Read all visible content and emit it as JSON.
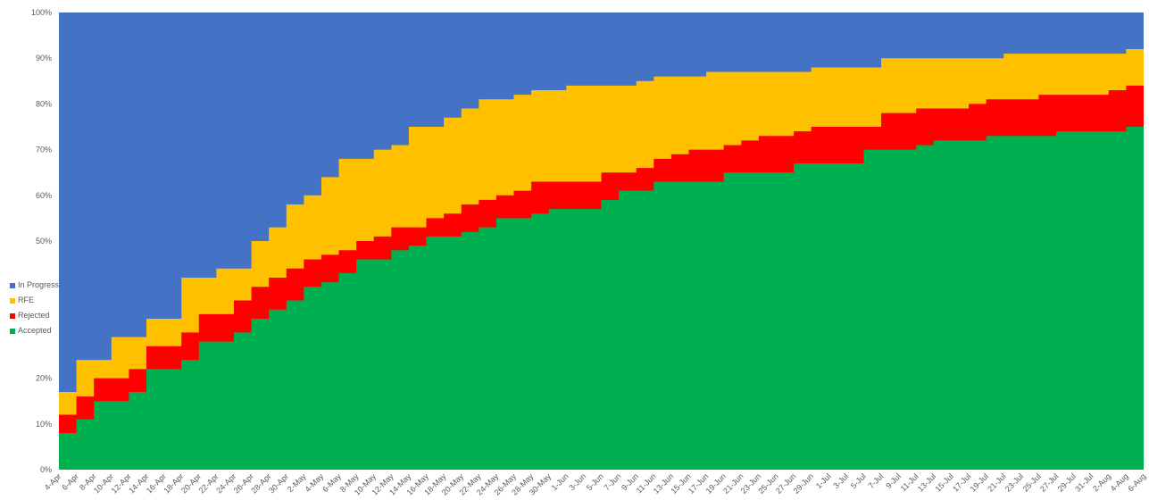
{
  "chart_data": {
    "type": "area",
    "stacked": true,
    "percent": true,
    "x_labels": [
      "4-Apr",
      "6-Apr",
      "8-Apr",
      "10-Apr",
      "12-Apr",
      "14-Apr",
      "16-Apr",
      "18-Apr",
      "20-Apr",
      "22-Apr",
      "24-Apr",
      "26-Apr",
      "28-Apr",
      "30-Apr",
      "2-May",
      "4-May",
      "6-May",
      "8-May",
      "10-May",
      "12-May",
      "14-May",
      "16-May",
      "18-May",
      "20-May",
      "22-May",
      "24-May",
      "26-May",
      "28-May",
      "30-May",
      "1-Jun",
      "3-Jun",
      "5-Jun",
      "7-Jun",
      "9-Jun",
      "11-Jun",
      "13-Jun",
      "15-Jun",
      "17-Jun",
      "19-Jun",
      "21-Jun",
      "23-Jun",
      "25-Jun",
      "27-Jun",
      "29-Jun",
      "1-Jul",
      "3-Jul",
      "5-Jul",
      "7-Jul",
      "9-Jul",
      "11-Jul",
      "13-Jul",
      "15-Jul",
      "17-Jul",
      "19-Jul",
      "21-Jul",
      "23-Jul",
      "25-Jul",
      "27-Jul",
      "29-Jul",
      "31-Jul",
      "2-Aug",
      "4-Aug",
      "6-Aug"
    ],
    "y_ticks": [
      "0%",
      "10%",
      "20%",
      "",
      "",
      "50%",
      "60%",
      "70%",
      "80%",
      "90%",
      "100%"
    ],
    "ylim": [
      0,
      100
    ],
    "legend_position": "left",
    "series": [
      {
        "name": "Accepted",
        "color": "#00B050",
        "values": [
          8,
          11,
          15,
          15,
          17,
          22,
          22,
          24,
          28,
          28,
          30,
          33,
          35,
          37,
          40,
          41,
          43,
          46,
          46,
          48,
          49,
          51,
          51,
          52,
          53,
          55,
          55,
          56,
          57,
          57,
          57,
          59,
          61,
          61,
          63,
          63,
          63,
          63,
          65,
          65,
          65,
          65,
          67,
          67,
          67,
          67,
          70,
          70,
          70,
          71,
          72,
          72,
          72,
          73,
          73,
          73,
          73,
          74,
          74,
          74,
          74,
          75,
          75
        ]
      },
      {
        "name": "Rejected",
        "color": "#FF0000",
        "values": [
          12,
          16,
          20,
          20,
          22,
          27,
          27,
          30,
          34,
          34,
          37,
          40,
          42,
          44,
          46,
          47,
          48,
          50,
          51,
          53,
          53,
          55,
          56,
          58,
          59,
          60,
          61,
          63,
          63,
          63,
          63,
          65,
          65,
          66,
          68,
          69,
          70,
          70,
          71,
          72,
          73,
          73,
          74,
          75,
          75,
          75,
          75,
          78,
          78,
          79,
          79,
          79,
          80,
          81,
          81,
          81,
          82,
          82,
          82,
          82,
          83,
          84,
          84
        ]
      },
      {
        "name": "RFE",
        "color": "#FFC000",
        "values": [
          17,
          24,
          24,
          29,
          29,
          33,
          33,
          42,
          42,
          44,
          44,
          50,
          53,
          58,
          60,
          64,
          68,
          68,
          70,
          71,
          75,
          75,
          77,
          79,
          81,
          81,
          82,
          83,
          83,
          84,
          84,
          84,
          84,
          85,
          86,
          86,
          86,
          87,
          87,
          87,
          87,
          87,
          87,
          88,
          88,
          88,
          88,
          90,
          90,
          90,
          90,
          90,
          90,
          90,
          91,
          91,
          91,
          91,
          91,
          91,
          91,
          92,
          92
        ]
      },
      {
        "name": "In Progress",
        "color": "#4472C4",
        "values": [
          100,
          100,
          100,
          100,
          100,
          100,
          100,
          100,
          100,
          100,
          100,
          100,
          100,
          100,
          100,
          100,
          100,
          100,
          100,
          100,
          100,
          100,
          100,
          100,
          100,
          100,
          100,
          100,
          100,
          100,
          100,
          100,
          100,
          100,
          100,
          100,
          100,
          100,
          100,
          100,
          100,
          100,
          100,
          100,
          100,
          100,
          100,
          100,
          100,
          100,
          100,
          100,
          100,
          100,
          100,
          100,
          100,
          100,
          100,
          100,
          100,
          100,
          100
        ]
      }
    ]
  }
}
